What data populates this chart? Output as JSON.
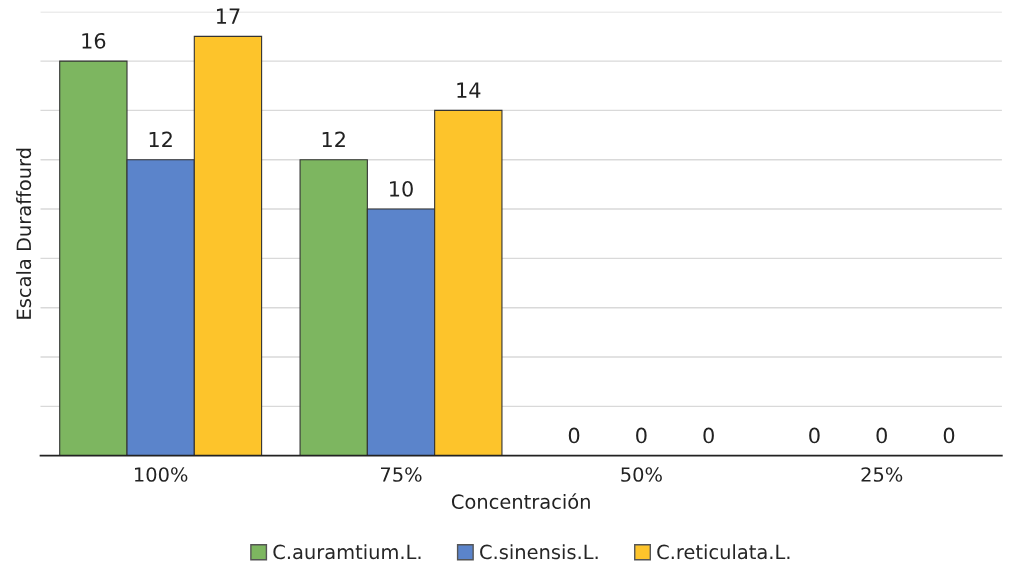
{
  "chart_data": {
    "type": "bar",
    "categories": [
      "100%",
      "75%",
      "50%",
      "25%"
    ],
    "xlabel": "Concentración",
    "ylabel": "Escala Duraffourd",
    "series": [
      {
        "name": "C.auramtium.L.",
        "color": "#7db660",
        "values": [
          16,
          12,
          0,
          0
        ]
      },
      {
        "name": "C.sinensis.L.",
        "color": "#5b84cb",
        "values": [
          12,
          10,
          0,
          0
        ]
      },
      {
        "name": "C.reticulata.L.",
        "color": "#fdc42b",
        "values": [
          17,
          14,
          0,
          0
        ]
      }
    ],
    "ylim": [
      0,
      18
    ],
    "yticks": [
      {
        "value": 0,
        "label": null
      },
      {
        "value": 2,
        "label": null
      },
      {
        "value": 4,
        "label": null
      },
      {
        "value": 6,
        "label": null
      },
      {
        "value": 8,
        "label": null
      },
      {
        "value": 10,
        "label": null
      },
      {
        "value": 12,
        "label": null
      },
      {
        "value": 14,
        "label": null
      },
      {
        "value": 16,
        "label": null
      },
      {
        "value": 18,
        "label": null
      }
    ],
    "tick_labels": "x",
    "grid": "y",
    "legend": "bottom",
    "data_labels": true
  }
}
